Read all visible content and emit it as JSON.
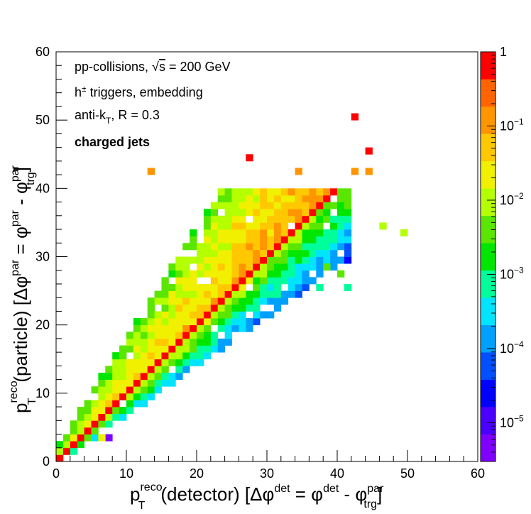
{
  "chart_data": {
    "type": "heatmap",
    "title": "",
    "xlabel": {
      "main": "p",
      "sub": "T",
      "sup": "reco",
      "rest": "(detector) [Δφ",
      "sup2": "det",
      "eq": " = φ",
      "sup3": "det",
      "minus": " - φ",
      "sup4": "par",
      "sub4": "trg",
      "close": "]"
    },
    "ylabel": {
      "main": "p",
      "sub": "T",
      "sup": "reco",
      "rest": "(particle) [Δφ",
      "sup2": "par",
      "eq": " = φ",
      "sup3": "par",
      "minus": " - φ",
      "sup4": "par",
      "sub4": "trg",
      "close": "]"
    },
    "xlim": [
      0,
      60
    ],
    "ylim": [
      0,
      60
    ],
    "xticks": [
      "0",
      "10",
      "20",
      "30",
      "40",
      "50",
      "60"
    ],
    "yticks": [
      "0",
      "10",
      "20",
      "30",
      "40",
      "50",
      "60"
    ],
    "z_scale": "log",
    "zlim": [
      3e-06,
      1
    ],
    "colorbar_ticks": [
      {
        "value": 1,
        "base": "1",
        "exp": ""
      },
      {
        "value": 0.1,
        "base": "10",
        "exp": "−1"
      },
      {
        "value": 0.01,
        "base": "10",
        "exp": "−2"
      },
      {
        "value": 0.001,
        "base": "10",
        "exp": "−3"
      },
      {
        "value": 0.0001,
        "base": "10",
        "exp": "−4"
      },
      {
        "value": 1e-05,
        "base": "10",
        "exp": "−5"
      }
    ],
    "bin_width": 1,
    "grid": false,
    "annotations": {
      "line1": {
        "a": "pp-collisions, ",
        "sqrt": "√",
        "s": "s",
        "b": " = 200 GeV"
      },
      "line2": {
        "a": "h",
        "sup": "±",
        "b": " triggers, embedding"
      },
      "line3": {
        "a": "anti-k",
        "sub": "T",
        "b": ", R = 0.3"
      },
      "line4": {
        "a": "charged jets"
      }
    },
    "isolated_bins": [
      {
        "x": 42.5,
        "y": 50.5,
        "z": 0.8
      },
      {
        "x": 44.5,
        "y": 45.5,
        "z": 0.8
      },
      {
        "x": 27.5,
        "y": 44.5,
        "z": 0.8
      },
      {
        "x": 13.5,
        "y": 42.5,
        "z": 0.12
      },
      {
        "x": 34.5,
        "y": 42.5,
        "z": 0.12
      },
      {
        "x": 42.5,
        "y": 42.5,
        "z": 0.12
      },
      {
        "x": 44.5,
        "y": 42.5,
        "z": 0.12
      },
      {
        "x": 49.5,
        "y": 33.5,
        "z": 0.008
      },
      {
        "x": 46.5,
        "y": 34.5,
        "z": 0.008
      },
      {
        "x": 38.5,
        "y": 28.5,
        "z": 0.005
      },
      {
        "x": 40.5,
        "y": 27.5,
        "z": 0.003
      },
      {
        "x": 37.5,
        "y": 25.5,
        "z": 0.0008
      },
      {
        "x": 41.5,
        "y": 25.5,
        "z": 0.0006
      },
      {
        "x": 7.5,
        "y": 3.5,
        "z": 5e-06
      },
      {
        "x": 6.5,
        "y": 3.5,
        "z": 0.02
      }
    ]
  },
  "colors": {
    "palette": [
      "#7f00ff",
      "#4b00ff",
      "#0000ff",
      "#0050ff",
      "#00a0ff",
      "#00e4ff",
      "#00ff9a",
      "#00e600",
      "#5ae600",
      "#b4ff00",
      "#f0f000",
      "#ffc800",
      "#ff9600",
      "#ff6400",
      "#ff0000"
    ]
  }
}
